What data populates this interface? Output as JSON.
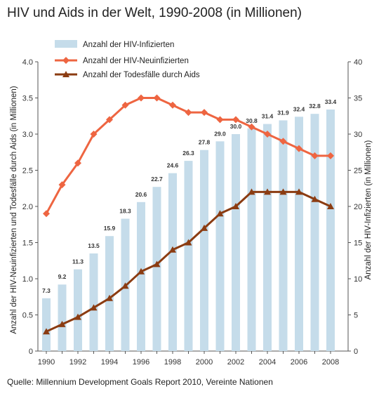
{
  "title": "HIV und Aids in der Welt, 1990-2008 (in Millionen)",
  "source": "Quelle: Millennium Development Goals Report 2010, Vereinte Nationen",
  "chart_data": {
    "type": "bar",
    "x": [
      1990,
      1991,
      1992,
      1993,
      1994,
      1995,
      1996,
      1997,
      1998,
      1999,
      2000,
      2001,
      2002,
      2003,
      2004,
      2005,
      2006,
      2007,
      2008
    ],
    "x_tick_labels": [
      "1990",
      "1992",
      "1994",
      "1996",
      "1998",
      "2000",
      "2002",
      "2004",
      "2006",
      "2008"
    ],
    "left_axis": {
      "label": "Anzahl der HIV-Neuinfizierten und Todesfälle durch Aids (in Millionen)",
      "ylim": [
        0,
        4.0
      ],
      "ticks": [
        "0",
        "0.5",
        "1.0",
        "1.5",
        "2.0",
        "2.5",
        "3.0",
        "3.5",
        "4.0"
      ]
    },
    "right_axis": {
      "label": "Anzahl der HIV-Infizierten (in Millionen)",
      "ylim": [
        0,
        40
      ],
      "ticks": [
        "0",
        "5",
        "10",
        "15",
        "20",
        "25",
        "30",
        "35",
        "40"
      ]
    },
    "series": [
      {
        "name": "Anzahl der HIV-Infizierten",
        "type": "bar",
        "axis": "right",
        "color": "#c5dcea",
        "values": [
          7.3,
          9.2,
          11.3,
          13.5,
          15.9,
          18.3,
          20.6,
          22.7,
          24.6,
          26.3,
          27.8,
          29.0,
          30.0,
          30.8,
          31.4,
          31.9,
          32.4,
          32.8,
          33.4
        ],
        "labels": [
          "7.3",
          "9.2",
          "11.3",
          "13.5",
          "15.9",
          "18.3",
          "20.6",
          "22.7",
          "24.6",
          "26.3",
          "27.8",
          "29.0",
          "30.0",
          "30.8",
          "31.4",
          "31.9",
          "32.4",
          "32.8",
          "33.4"
        ]
      },
      {
        "name": "Anzahl der HIV-Neuinfizierten",
        "type": "line",
        "marker": "diamond",
        "axis": "left",
        "color": "#ee6541",
        "values": [
          1.9,
          2.3,
          2.6,
          3.0,
          3.2,
          3.4,
          3.5,
          3.5,
          3.4,
          3.3,
          3.3,
          3.2,
          3.2,
          3.1,
          3.0,
          2.9,
          2.8,
          2.7,
          2.7
        ]
      },
      {
        "name": "Anzahl der Todesfälle durch Aids",
        "type": "line",
        "marker": "triangle",
        "axis": "left",
        "color": "#8b3c12",
        "values": [
          0.27,
          0.37,
          0.47,
          0.6,
          0.73,
          0.9,
          1.1,
          1.2,
          1.4,
          1.5,
          1.7,
          1.9,
          2.0,
          2.2,
          2.2,
          2.2,
          2.2,
          2.1,
          2.0
        ]
      }
    ],
    "legend": "top-center",
    "grid": false
  }
}
